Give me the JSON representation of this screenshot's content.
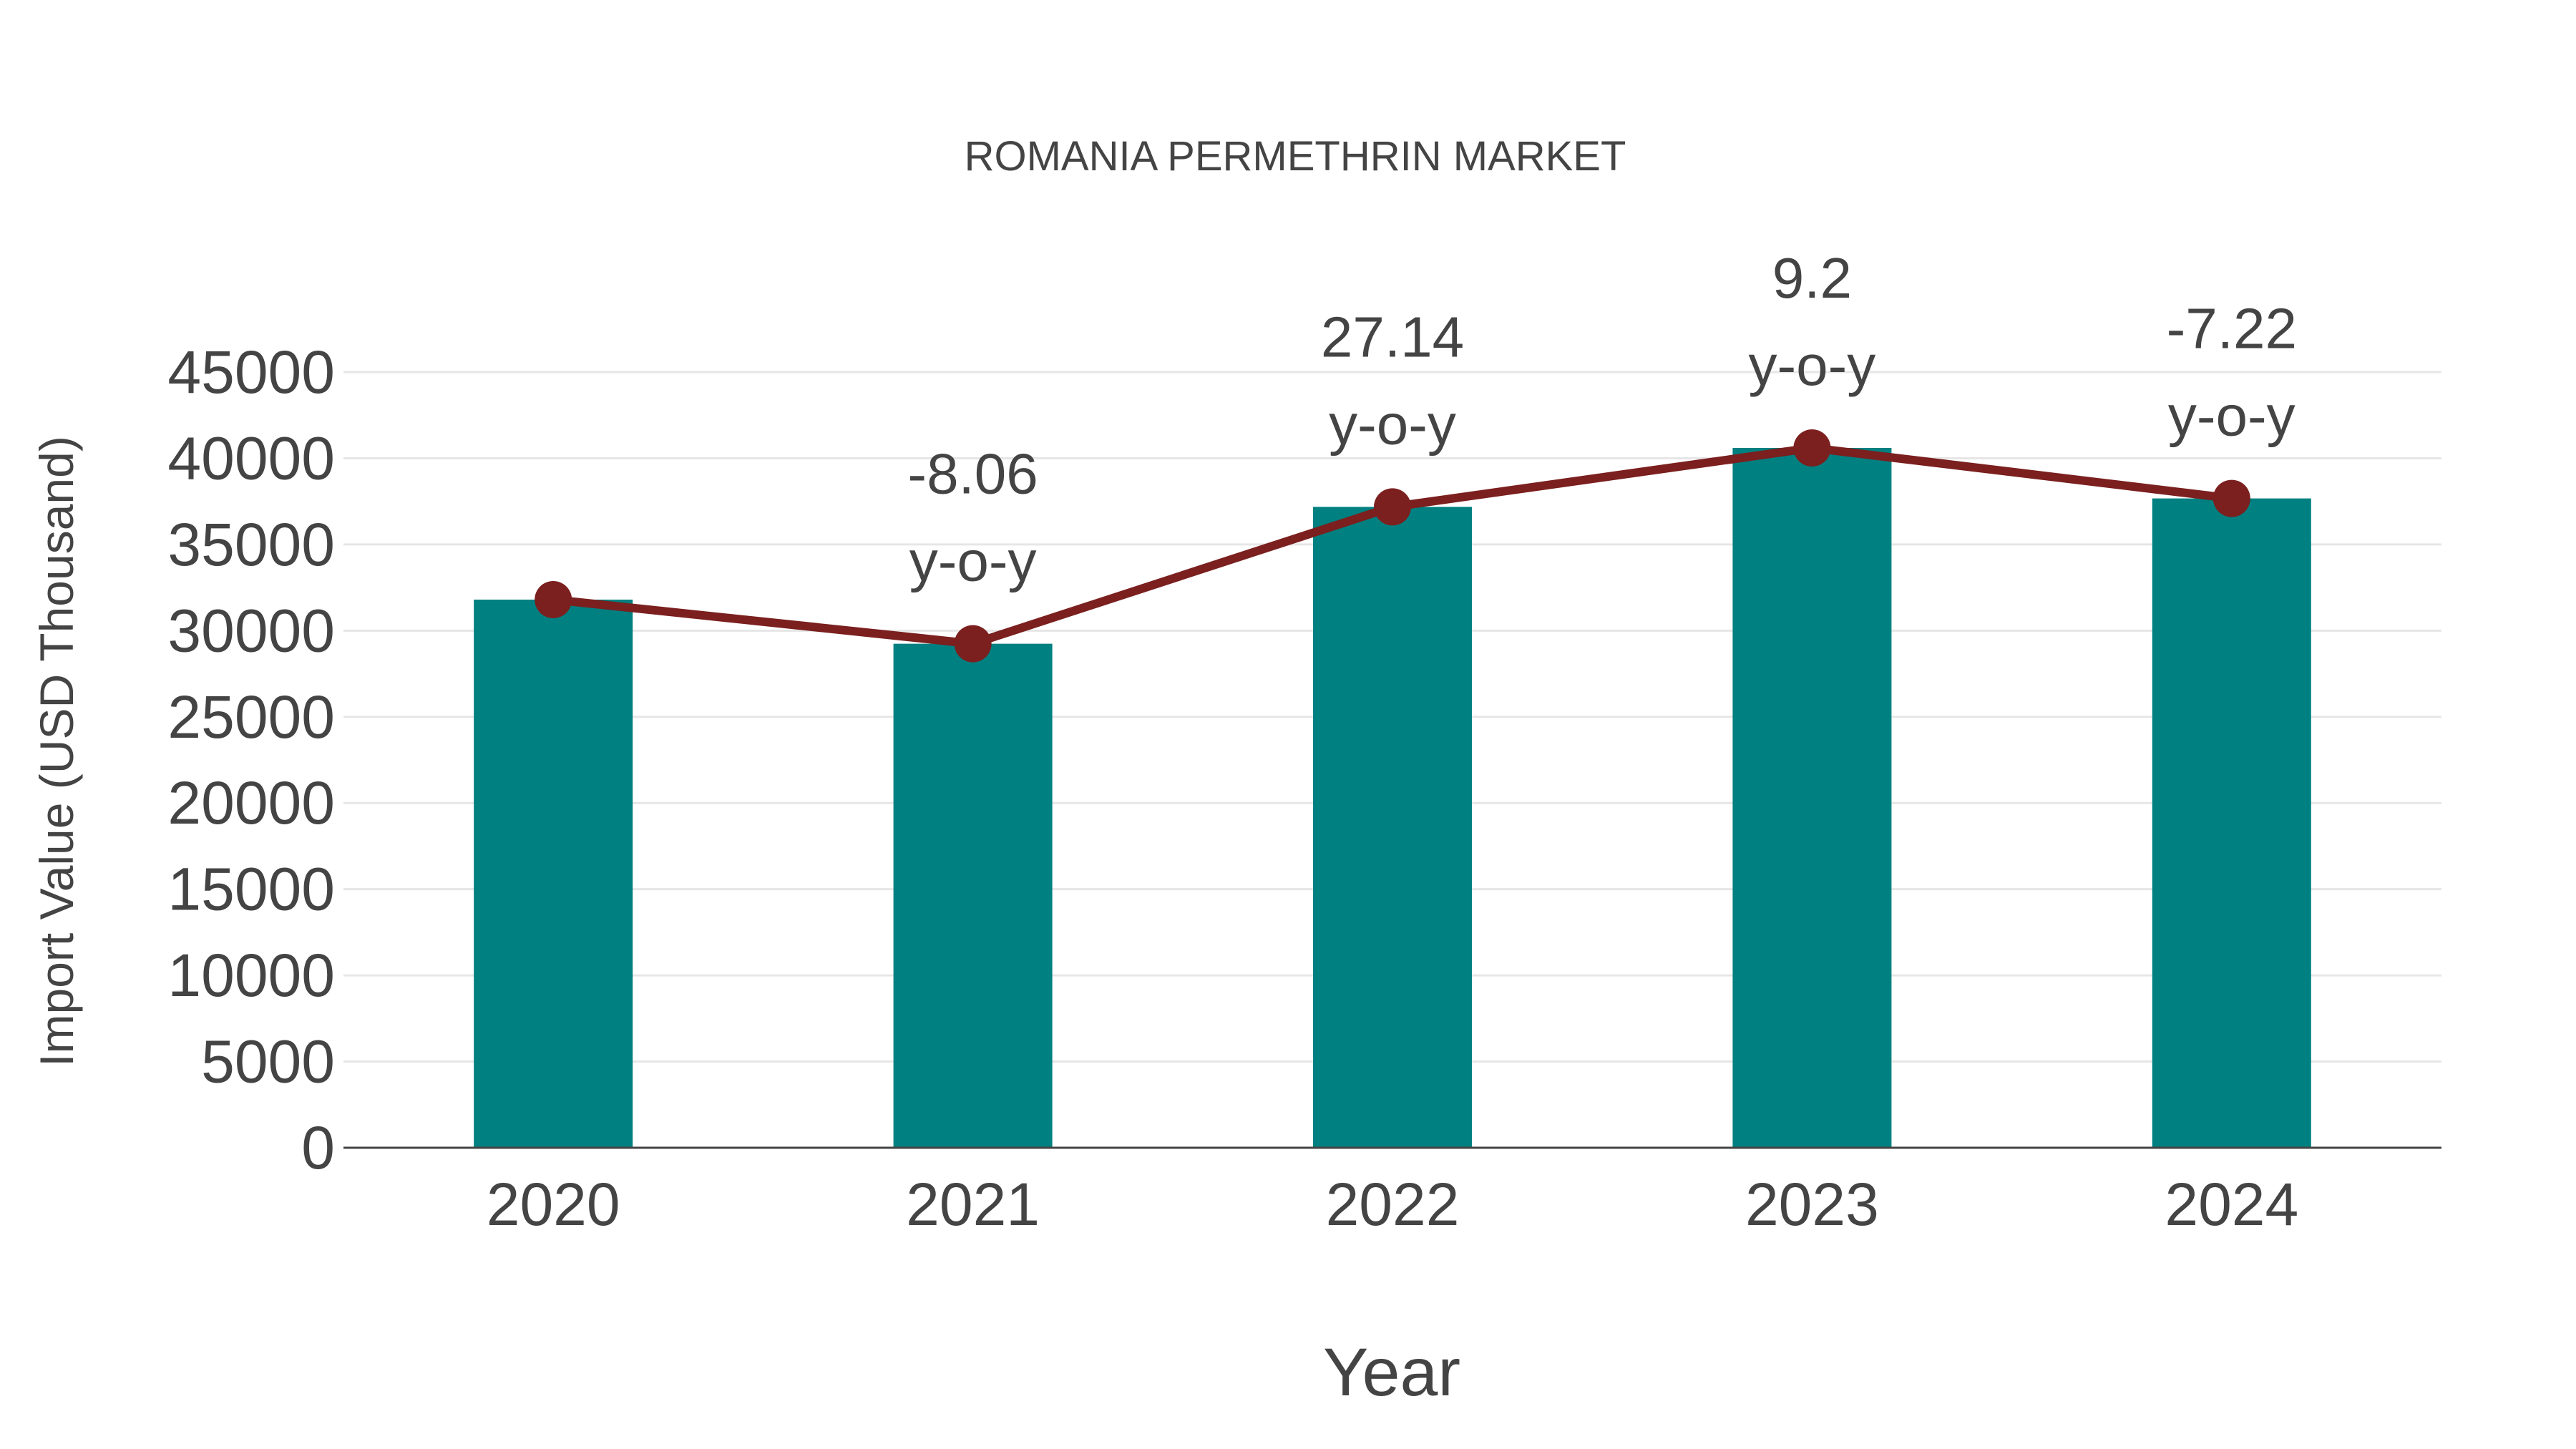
{
  "chart_data": {
    "type": "bar",
    "title": "ROMANIA PERMETHRIN MARKET",
    "xlabel": "Year",
    "ylabel": "Import Value (USD Thousand)",
    "categories": [
      "2020",
      "2021",
      "2022",
      "2023",
      "2024"
    ],
    "series": [
      {
        "name": "Import Value",
        "type": "bar",
        "color": "#008080",
        "values": [
          31800,
          29240,
          37180,
          40600,
          37670
        ]
      },
      {
        "name": "Trend",
        "type": "line",
        "color": "#7B1F1F",
        "values": [
          31800,
          29240,
          37180,
          40600,
          37670
        ]
      }
    ],
    "annotations": [
      {
        "year": "2021",
        "value": "-8.06",
        "suffix": "y-o-y"
      },
      {
        "year": "2022",
        "value": "27.14",
        "suffix": "y-o-y"
      },
      {
        "year": "2023",
        "value": "9.2",
        "suffix": "y-o-y"
      },
      {
        "year": "2024",
        "value": "-7.22",
        "suffix": "y-o-y"
      }
    ],
    "ylim": [
      0,
      45000
    ],
    "yticks": [
      "0",
      "5000",
      "10000",
      "15000",
      "20000",
      "25000",
      "30000",
      "35000",
      "40000",
      "45000"
    ],
    "grid": true,
    "legend": "none"
  },
  "colors": {
    "bar": "#008080",
    "line": "#7B1F1F",
    "grid": "#E6E6E6",
    "axis": "#444444",
    "text": "#444444"
  }
}
